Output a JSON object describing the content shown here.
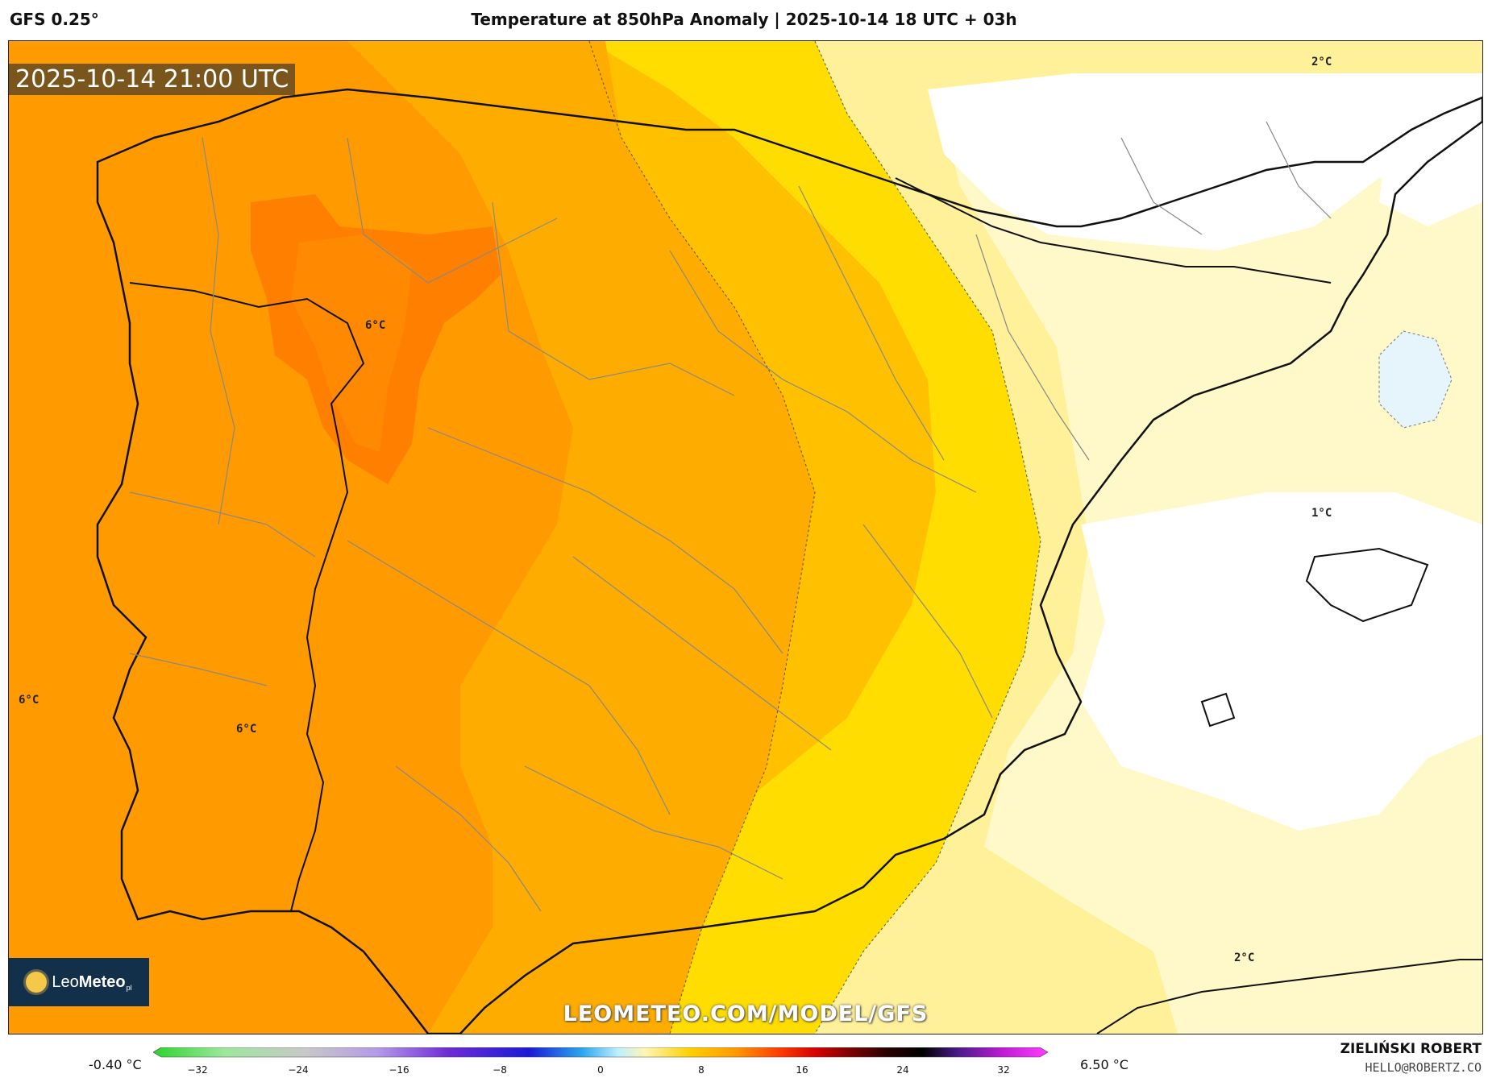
{
  "header": {
    "model": "GFS 0.25°",
    "title": "Temperature at 850hPa Anomaly | 2025-10-14 18 UTC + 03h"
  },
  "map": {
    "valid_time": "2025-10-14 21:00 UTC",
    "isotherm_labels": [
      "2°C",
      "6°C",
      "1°C",
      "6°C",
      "6°C",
      "2°C"
    ],
    "watermark": "LEOMETEO.COM/MODEL/GFS",
    "logo_text_light": "Leo",
    "logo_text_bold": "Meteo",
    "logo_suffix": "pl",
    "colors": {
      "anom_8": "#ff7f00",
      "anom_6": "#ff9a00",
      "anom_5": "#ffac00",
      "anom_4": "#ffc000",
      "anom_3": "#ffdd00",
      "anom_2": "#fff19a",
      "anom_1": "#fff8c8",
      "anom_0": "#ffffff",
      "anom_neg": "#e6f4fb"
    }
  },
  "legend": {
    "min_label": "-0.40 °C",
    "max_label": "6.50 °C",
    "ticks": [
      "−32",
      "−24",
      "−16",
      "−8",
      "0",
      "8",
      "16",
      "24",
      "32"
    ]
  },
  "credits": {
    "author": "ZIELIŃSKI ROBERT",
    "email": "HELLO@ROBERTZ.CO"
  }
}
